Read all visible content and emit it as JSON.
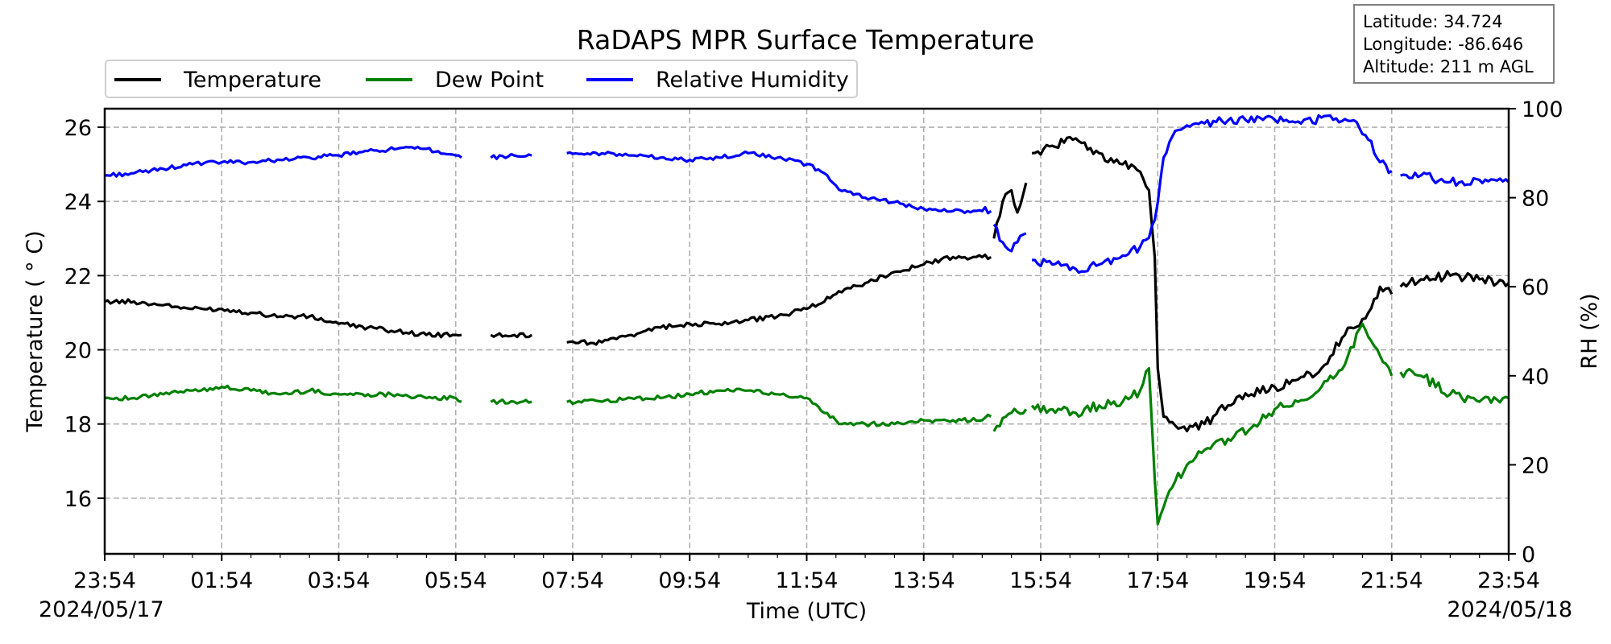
{
  "chart_data": {
    "type": "line",
    "title": "RaDAPS MPR Surface Temperature",
    "xlabel": "Time (UTC)",
    "ylabel_left": "Temperature ($^\\circ$C)",
    "ylabel_left_display": "Temperature ( ° C)",
    "ylabel_right": "RH (%)",
    "x_range_hours": [
      0,
      24
    ],
    "ylim_left": [
      14.5,
      26.5
    ],
    "ylim_right": [
      0,
      100
    ],
    "x_ticks": [
      "23:54",
      "01:54",
      "03:54",
      "05:54",
      "07:54",
      "09:54",
      "11:54",
      "13:54",
      "15:54",
      "17:54",
      "19:54",
      "21:54",
      "23:54"
    ],
    "y_ticks_left": [
      16,
      18,
      20,
      22,
      24,
      26
    ],
    "y_ticks_right": [
      0,
      20,
      40,
      60,
      80,
      100
    ],
    "date_start": "2024/05/17",
    "date_end": "2024/05/18",
    "grid": true,
    "legend_position": "top-left",
    "series": [
      {
        "name": "Temperature",
        "color": "#000000",
        "axis": "left",
        "segments": [
          [
            [
              0,
              21.3
            ],
            [
              0.5,
              21.3
            ],
            [
              1,
              21.2
            ],
            [
              1.5,
              21.1
            ],
            [
              2,
              21.1
            ],
            [
              2.5,
              21.0
            ],
            [
              3,
              20.9
            ],
            [
              3.5,
              20.9
            ],
            [
              4,
              20.7
            ],
            [
              4.5,
              20.6
            ],
            [
              5,
              20.5
            ],
            [
              5.5,
              20.4
            ],
            [
              6,
              20.4
            ],
            [
              6.1,
              20.4
            ]
          ],
          [
            [
              6.6,
              20.4
            ],
            [
              7,
              20.4
            ],
            [
              7.3,
              20.4
            ]
          ],
          [
            [
              7.9,
              20.2
            ],
            [
              8.5,
              20.2
            ],
            [
              9,
              20.4
            ],
            [
              9.5,
              20.6
            ],
            [
              10,
              20.7
            ],
            [
              10.5,
              20.7
            ],
            [
              11,
              20.8
            ],
            [
              11.5,
              20.9
            ],
            [
              12,
              21.1
            ],
            [
              12.5,
              21.5
            ],
            [
              13,
              21.8
            ],
            [
              13.5,
              22.1
            ],
            [
              14,
              22.3
            ],
            [
              14.5,
              22.5
            ],
            [
              15,
              22.5
            ],
            [
              15.15,
              22.5
            ]
          ],
          [
            [
              15.2,
              23.0
            ],
            [
              15.35,
              24.0
            ],
            [
              15.5,
              24.3
            ],
            [
              15.6,
              23.7
            ],
            [
              15.75,
              24.5
            ]
          ],
          [
            [
              15.85,
              25.3
            ],
            [
              16.2,
              25.5
            ],
            [
              16.6,
              25.7
            ],
            [
              17,
              25.3
            ],
            [
              17.4,
              25.0
            ],
            [
              17.7,
              24.8
            ],
            [
              17.85,
              24.3
            ],
            [
              17.95,
              22.5
            ],
            [
              18.0,
              19.5
            ],
            [
              18.1,
              18.2
            ],
            [
              18.4,
              17.9
            ],
            [
              18.8,
              18.0
            ],
            [
              19.2,
              18.5
            ],
            [
              19.6,
              18.8
            ],
            [
              20,
              19.0
            ],
            [
              20.4,
              19.2
            ],
            [
              20.8,
              19.5
            ],
            [
              21.2,
              20.4
            ],
            [
              21.6,
              21.0
            ],
            [
              21.8,
              21.7
            ],
            [
              22.0,
              21.5
            ]
          ],
          [
            [
              22.15,
              21.7
            ],
            [
              22.5,
              21.9
            ],
            [
              23,
              22.0
            ],
            [
              23.5,
              21.9
            ],
            [
              24,
              21.8
            ]
          ]
        ]
      },
      {
        "name": "Dew Point",
        "color": "#008000",
        "axis": "left",
        "segments": [
          [
            [
              0,
              18.7
            ],
            [
              0.5,
              18.7
            ],
            [
              1,
              18.8
            ],
            [
              1.5,
              18.9
            ],
            [
              2,
              19.0
            ],
            [
              2.5,
              18.9
            ],
            [
              3,
              18.8
            ],
            [
              3.5,
              18.9
            ],
            [
              4,
              18.8
            ],
            [
              4.5,
              18.8
            ],
            [
              5,
              18.8
            ],
            [
              5.5,
              18.7
            ],
            [
              6,
              18.7
            ],
            [
              6.1,
              18.6
            ]
          ],
          [
            [
              6.6,
              18.6
            ],
            [
              7,
              18.6
            ],
            [
              7.3,
              18.6
            ]
          ],
          [
            [
              7.9,
              18.6
            ],
            [
              8.5,
              18.6
            ],
            [
              9,
              18.7
            ],
            [
              9.5,
              18.7
            ],
            [
              10,
              18.8
            ],
            [
              10.5,
              18.9
            ],
            [
              11,
              18.9
            ],
            [
              11.5,
              18.8
            ],
            [
              12,
              18.7
            ],
            [
              12.3,
              18.3
            ],
            [
              12.6,
              18.0
            ],
            [
              13,
              18.0
            ],
            [
              13.5,
              18.0
            ],
            [
              14,
              18.1
            ],
            [
              14.5,
              18.1
            ],
            [
              15,
              18.1
            ],
            [
              15.15,
              18.2
            ]
          ],
          [
            [
              15.2,
              17.8
            ],
            [
              15.5,
              18.3
            ],
            [
              15.75,
              18.4
            ]
          ],
          [
            [
              15.85,
              18.5
            ],
            [
              16.2,
              18.4
            ],
            [
              16.6,
              18.3
            ],
            [
              17,
              18.5
            ],
            [
              17.4,
              18.6
            ],
            [
              17.7,
              18.9
            ],
            [
              17.85,
              19.5
            ],
            [
              17.95,
              16.5
            ],
            [
              18.0,
              15.3
            ],
            [
              18.2,
              16.2
            ],
            [
              18.5,
              16.9
            ],
            [
              18.8,
              17.3
            ],
            [
              19.2,
              17.6
            ],
            [
              19.6,
              17.9
            ],
            [
              20,
              18.4
            ],
            [
              20.4,
              18.6
            ],
            [
              20.8,
              19.0
            ],
            [
              21.2,
              19.6
            ],
            [
              21.5,
              20.7
            ],
            [
              21.7,
              20.1
            ],
            [
              22.0,
              19.3
            ]
          ],
          [
            [
              22.15,
              19.4
            ],
            [
              22.5,
              19.3
            ],
            [
              23,
              18.8
            ],
            [
              23.5,
              18.6
            ],
            [
              24,
              18.7
            ]
          ]
        ]
      },
      {
        "name": "Relative Humidity",
        "color": "#0000ff",
        "axis": "right",
        "segments": [
          [
            [
              0,
              85
            ],
            [
              0.5,
              85.5
            ],
            [
              1,
              86.5
            ],
            [
              1.5,
              87.5
            ],
            [
              2,
              88
            ],
            [
              2.5,
              88
            ],
            [
              3,
              88.5
            ],
            [
              3.5,
              89
            ],
            [
              4,
              89.5
            ],
            [
              4.5,
              90.5
            ],
            [
              5,
              91
            ],
            [
              5.5,
              91
            ],
            [
              6,
              89.5
            ],
            [
              6.1,
              89
            ]
          ],
          [
            [
              6.6,
              89
            ],
            [
              7,
              89.5
            ],
            [
              7.3,
              89.5
            ]
          ],
          [
            [
              7.9,
              90
            ],
            [
              8.5,
              90
            ],
            [
              9,
              89.5
            ],
            [
              9.5,
              89
            ],
            [
              10,
              88.5
            ],
            [
              10.5,
              89
            ],
            [
              11,
              90
            ],
            [
              11.5,
              89
            ],
            [
              12,
              87.5
            ],
            [
              12.3,
              85.5
            ],
            [
              12.6,
              81.5
            ],
            [
              13,
              80
            ],
            [
              13.5,
              79
            ],
            [
              14,
              77.5
            ],
            [
              14.5,
              77
            ],
            [
              15,
              77
            ],
            [
              15.15,
              77
            ]
          ],
          [
            [
              15.2,
              74
            ],
            [
              15.35,
              70
            ],
            [
              15.5,
              68
            ],
            [
              15.6,
              70
            ],
            [
              15.75,
              72
            ]
          ],
          [
            [
              15.85,
              66
            ],
            [
              16.2,
              65
            ],
            [
              16.6,
              64
            ],
            [
              17,
              65
            ],
            [
              17.4,
              67
            ],
            [
              17.7,
              69
            ],
            [
              17.85,
              71
            ],
            [
              17.95,
              75
            ],
            [
              18.1,
              89
            ],
            [
              18.3,
              95
            ],
            [
              18.6,
              96.5
            ],
            [
              19,
              97
            ],
            [
              19.5,
              97.5
            ],
            [
              20,
              97.5
            ],
            [
              20.5,
              97.5
            ],
            [
              21,
              97.5
            ],
            [
              21.4,
              97
            ],
            [
              21.6,
              93
            ],
            [
              21.8,
              88
            ],
            [
              22.0,
              86
            ]
          ],
          [
            [
              22.15,
              85
            ],
            [
              22.5,
              85
            ],
            [
              23,
              83.5
            ],
            [
              23.5,
              84
            ],
            [
              24,
              83.5
            ]
          ]
        ]
      }
    ],
    "info_box": {
      "latitude": "Latitude: 34.724",
      "longitude": "Longitude: -86.646",
      "altitude": "Altitude: 211 m AGL"
    }
  }
}
